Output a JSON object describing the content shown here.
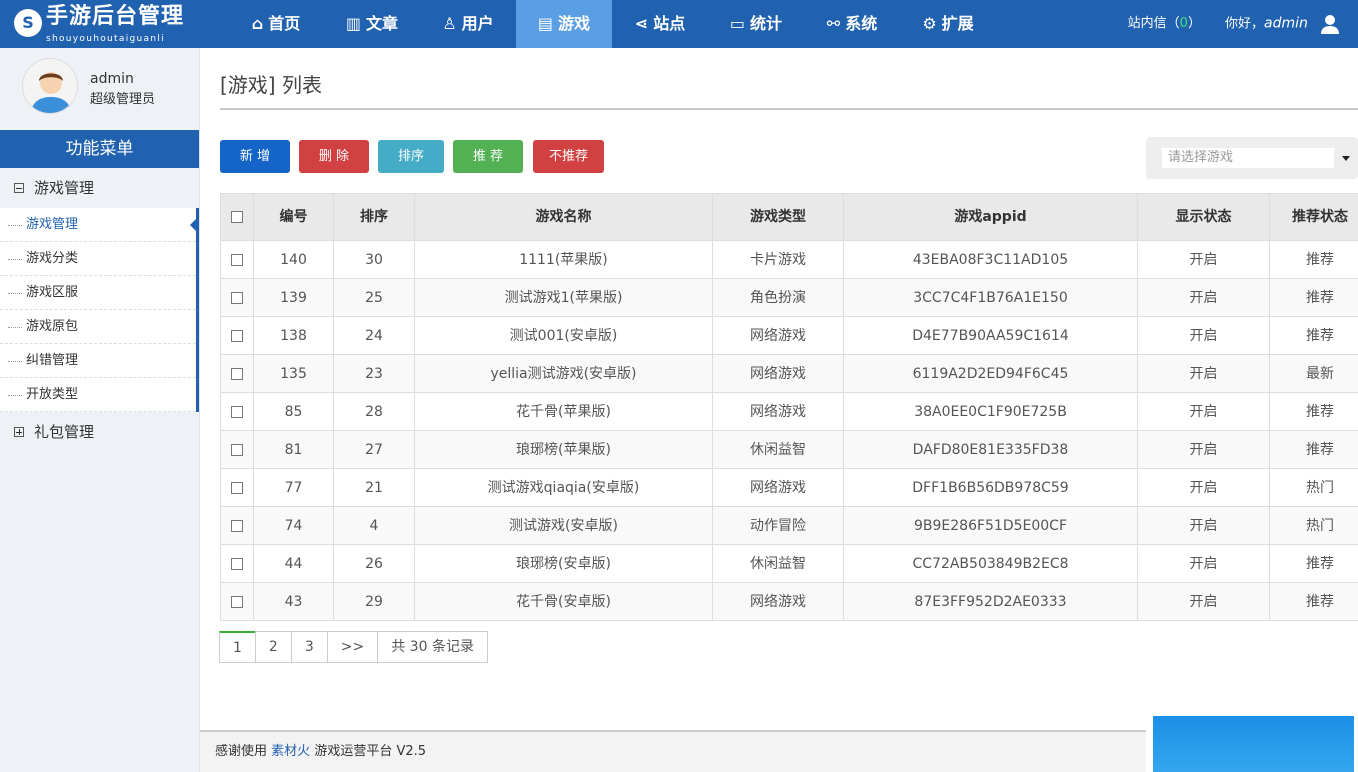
{
  "header": {
    "logo_title": "手游后台管理",
    "logo_subtitle": "shouyouhoutaiguanli",
    "nav": [
      {
        "label": "首页",
        "icon": "home-icon"
      },
      {
        "label": "文章",
        "icon": "bar-chart-icon"
      },
      {
        "label": "用户",
        "icon": "user-pin-icon"
      },
      {
        "label": "游戏",
        "icon": "document-icon",
        "active": true
      },
      {
        "label": "站点",
        "icon": "share-icon"
      },
      {
        "label": "统计",
        "icon": "monitor-icon"
      },
      {
        "label": "系统",
        "icon": "link-icon"
      },
      {
        "label": "扩展",
        "icon": "gear-icon"
      }
    ],
    "messages_label": "站内信（",
    "messages_count": "0",
    "messages_close": "）",
    "greeting": "你好，",
    "username": "admin"
  },
  "sidebar": {
    "name": "admin",
    "role": "超级管理员",
    "menu_title": "功能菜单",
    "groups": [
      {
        "label": "游戏管理",
        "expanded": true,
        "items": [
          "游戏管理",
          "游戏分类",
          "游戏区服",
          "游戏原包",
          "纠错管理",
          "开放类型"
        ]
      },
      {
        "label": "礼包管理",
        "expanded": false
      }
    ]
  },
  "main": {
    "title": "[游戏] 列表",
    "buttons": [
      {
        "label": "新 增",
        "color": "#1565c8"
      },
      {
        "label": "删 除",
        "color": "#d14141"
      },
      {
        "label": "排序",
        "color": "#45acc8"
      },
      {
        "label": "推 荐",
        "color": "#52b153"
      },
      {
        "label": "不推荐",
        "color": "#d14141"
      }
    ],
    "select_placeholder": "请选择游戏",
    "columns": [
      "编号",
      "排序",
      "游戏名称",
      "游戏类型",
      "游戏appid",
      "显示状态",
      "推荐状态"
    ],
    "rows": [
      [
        "140",
        "30",
        "1111(苹果版)",
        "卡片游戏",
        "43EBA08F3C11AD105",
        "开启",
        "推荐"
      ],
      [
        "139",
        "25",
        "测试游戏1(苹果版)",
        "角色扮演",
        "3CC7C4F1B76A1E150",
        "开启",
        "推荐"
      ],
      [
        "138",
        "24",
        "测试001(安卓版)",
        "网络游戏",
        "D4E77B90AA59C1614",
        "开启",
        "推荐"
      ],
      [
        "135",
        "23",
        "yellia测试游戏(安卓版)",
        "网络游戏",
        "6119A2D2ED94F6C45",
        "开启",
        "最新"
      ],
      [
        "85",
        "28",
        "花千骨(苹果版)",
        "网络游戏",
        "38A0EE0C1F90E725B",
        "开启",
        "推荐"
      ],
      [
        "81",
        "27",
        "琅琊榜(苹果版)",
        "休闲益智",
        "DAFD80E81E335FD38",
        "开启",
        "推荐"
      ],
      [
        "77",
        "21",
        "测试游戏qiaqia(安卓版)",
        "网络游戏",
        "DFF1B6B56DB978C59",
        "开启",
        "热门"
      ],
      [
        "74",
        "4",
        "测试游戏(安卓版)",
        "动作冒险",
        "9B9E286F51D5E00CF",
        "开启",
        "热门"
      ],
      [
        "44",
        "26",
        "琅琊榜(安卓版)",
        "休闲益智",
        "CC72AB503849B2EC8",
        "开启",
        "推荐"
      ],
      [
        "43",
        "29",
        "花千骨(安卓版)",
        "网络游戏",
        "87E3FF952D2AE0333",
        "开启",
        "推荐"
      ]
    ],
    "pager": [
      "1",
      "2",
      "3",
      ">>",
      "共 30 条记录"
    ]
  },
  "footer": {
    "prefix": "感谢使用",
    "link": "素材火",
    "suffix": "游戏运营平台 V2.5"
  }
}
